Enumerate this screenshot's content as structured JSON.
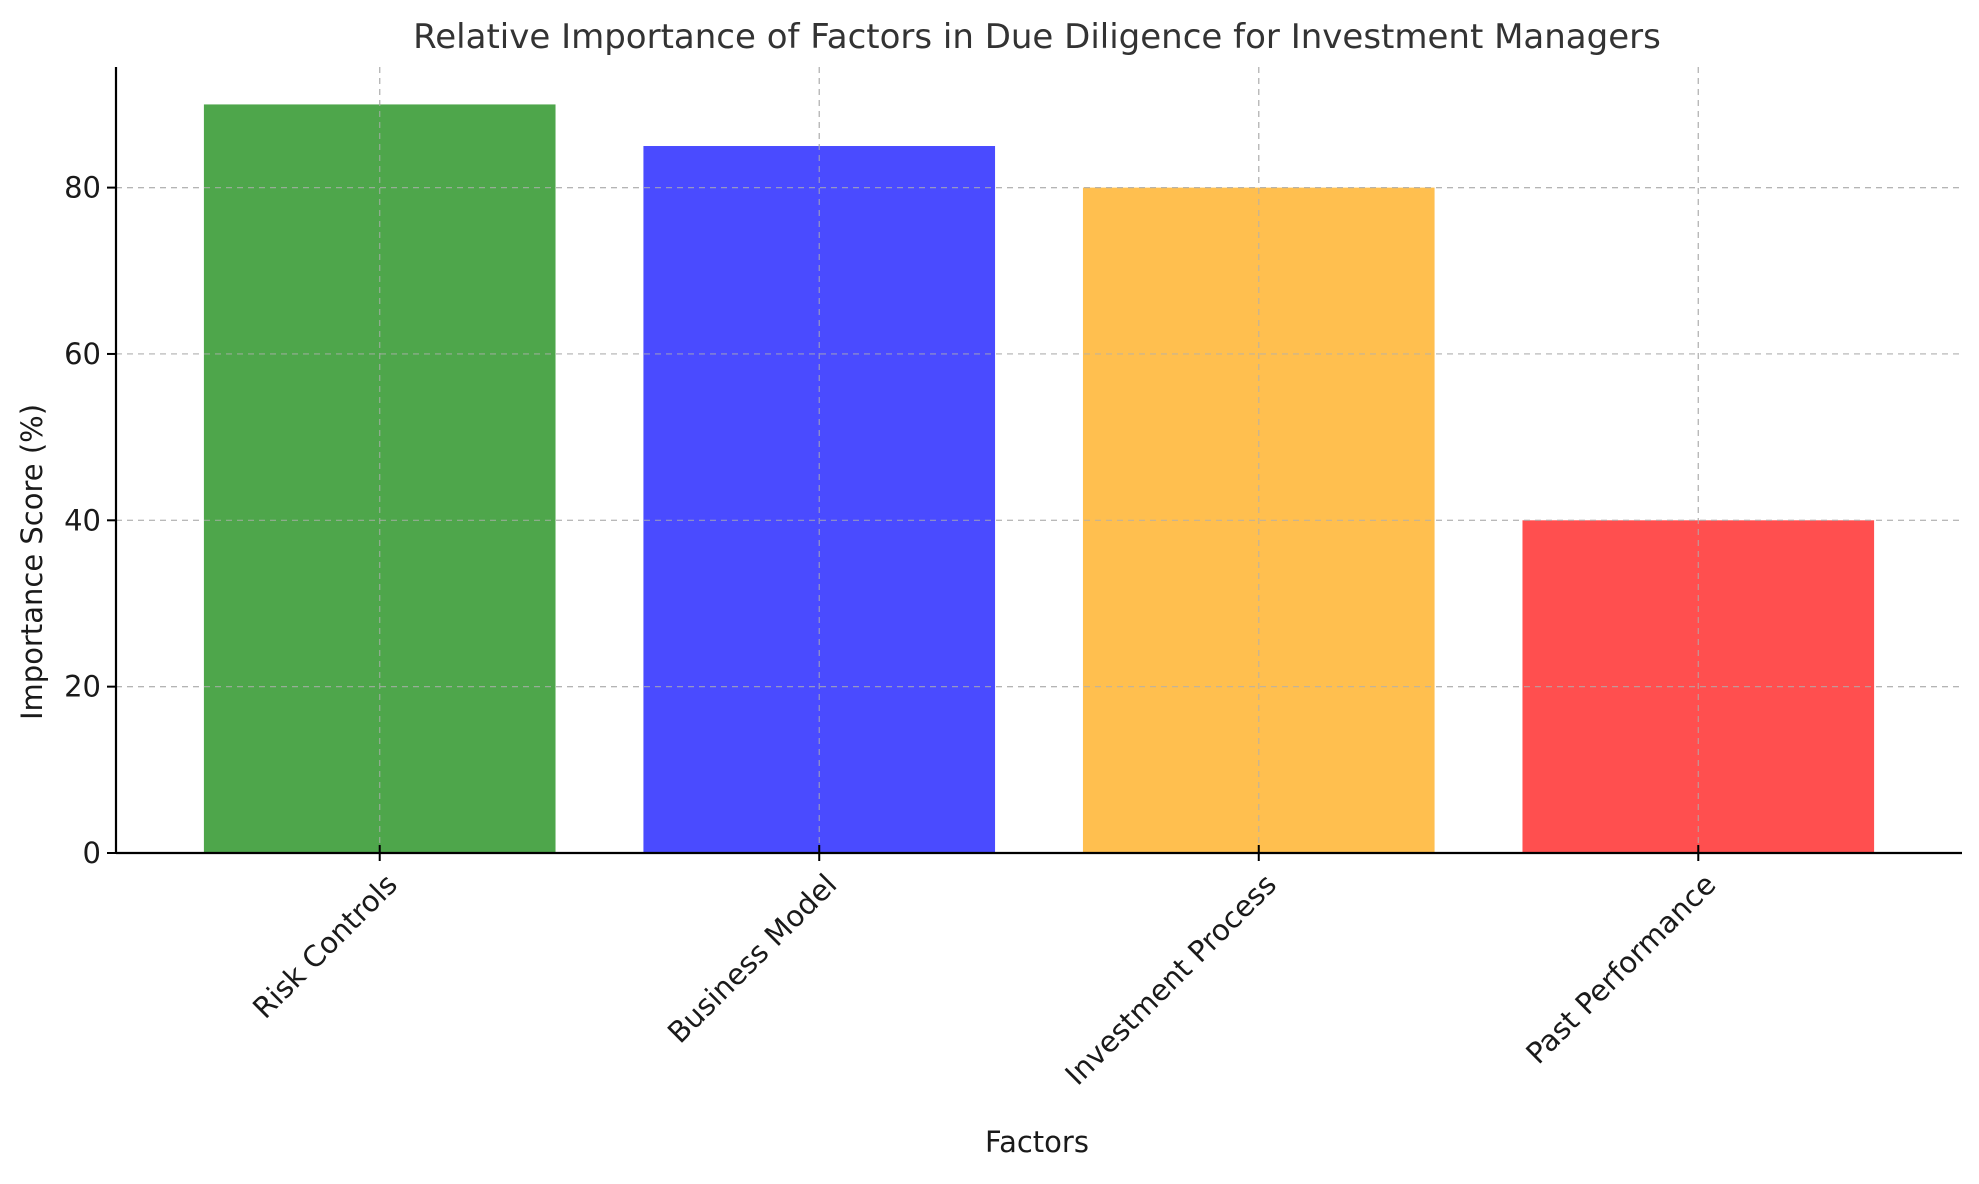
{
  "chart_data": {
    "type": "bar",
    "title": "Relative Importance of Factors in Due Diligence for Investment Managers",
    "xlabel": "Factors",
    "ylabel": "Importance Score (%)",
    "categories": [
      "Risk Controls",
      "Business Model",
      "Investment Process",
      "Past Performance"
    ],
    "values": [
      90,
      85,
      80,
      40
    ],
    "colors": [
      "#4ea64b",
      "#4a4bff",
      "#ffbf4f",
      "#ff4f4f"
    ],
    "ylim": [
      0,
      94.5
    ],
    "yticks": [
      0,
      20,
      40,
      60,
      80
    ],
    "grid": true,
    "legend": "none",
    "xtick_rotation": "45 degrees"
  }
}
